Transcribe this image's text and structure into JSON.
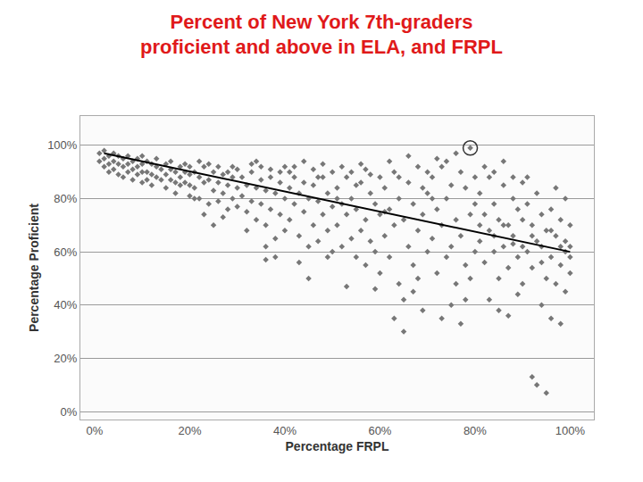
{
  "chart_data": {
    "type": "scatter",
    "title": [
      "Percent of New York 7th-graders",
      "proficient and above in ELA, and FRPL"
    ],
    "x_label": "Percentage FRPL",
    "y_label": "Percentage Proficient",
    "xlim": [
      -3,
      105
    ],
    "ylim": [
      -3,
      111
    ],
    "xticks": [
      {
        "value": 0,
        "label": "0%"
      },
      {
        "value": 20,
        "label": "20%"
      },
      {
        "value": 40,
        "label": "40%"
      },
      {
        "value": 60,
        "label": "60%"
      },
      {
        "value": 80,
        "label": "80%"
      },
      {
        "value": 100,
        "label": "100%"
      }
    ],
    "yticks": [
      {
        "value": 0,
        "label": "0%"
      },
      {
        "value": 20,
        "label": "20%"
      },
      {
        "value": 40,
        "label": "40%"
      },
      {
        "value": 60,
        "label": "60%"
      },
      {
        "value": 80,
        "label": "80%"
      },
      {
        "value": 100,
        "label": "100%"
      }
    ],
    "grid": "y",
    "series": [
      {
        "type": "scatter",
        "marker": "diamond",
        "color": "#777777",
        "x": [
          1,
          1,
          2,
          2,
          2,
          3,
          3,
          3,
          4,
          4,
          4,
          5,
          5,
          5,
          6,
          6,
          6,
          7,
          7,
          7,
          8,
          8,
          8,
          9,
          9,
          9,
          10,
          10,
          10,
          10,
          11,
          11,
          11,
          12,
          12,
          12,
          13,
          13,
          13,
          14,
          14,
          15,
          15,
          15,
          16,
          16,
          16,
          17,
          17,
          17,
          18,
          18,
          18,
          19,
          19,
          19,
          20,
          20,
          20,
          20,
          21,
          21,
          22,
          22,
          23,
          23,
          24,
          24,
          25,
          25,
          26,
          26,
          27,
          27,
          28,
          28,
          29,
          29,
          30,
          30,
          22,
          24,
          26,
          28,
          30,
          23,
          27,
          29,
          25,
          21,
          31,
          31,
          32,
          32,
          33,
          33,
          34,
          34,
          35,
          35,
          36,
          36,
          37,
          37,
          38,
          38,
          39,
          39,
          40,
          40,
          33,
          35,
          37,
          39,
          32,
          34,
          36,
          38,
          40,
          36,
          41,
          41,
          42,
          42,
          43,
          43,
          44,
          44,
          45,
          45,
          46,
          46,
          47,
          47,
          48,
          48,
          49,
          49,
          50,
          50,
          42,
          44,
          46,
          48,
          50,
          43,
          45,
          47,
          49,
          41,
          51,
          51,
          52,
          52,
          53,
          53,
          54,
          54,
          55,
          55,
          56,
          56,
          57,
          57,
          58,
          58,
          59,
          59,
          60,
          60,
          52,
          54,
          56,
          58,
          60,
          53,
          55,
          57,
          59,
          51,
          61,
          61,
          62,
          62,
          63,
          63,
          64,
          64,
          65,
          65,
          66,
          66,
          67,
          67,
          68,
          68,
          69,
          69,
          70,
          70,
          62,
          64,
          66,
          68,
          70,
          63,
          65,
          67,
          69,
          61,
          71,
          71,
          72,
          72,
          73,
          73,
          74,
          74,
          75,
          75,
          76,
          76,
          77,
          77,
          78,
          78,
          79,
          79,
          80,
          80,
          72,
          74,
          76,
          78,
          80,
          73,
          75,
          77,
          79,
          71,
          81,
          81,
          82,
          82,
          83,
          83,
          84,
          84,
          85,
          85,
          86,
          86,
          87,
          87,
          88,
          88,
          89,
          89,
          90,
          90,
          82,
          84,
          86,
          88,
          90,
          83,
          85,
          87,
          89,
          81,
          91,
          91,
          92,
          92,
          93,
          93,
          94,
          94,
          95,
          95,
          96,
          96,
          97,
          97,
          98,
          98,
          99,
          99,
          100,
          100,
          92,
          93,
          95,
          91,
          94,
          96,
          98,
          97,
          99,
          100,
          90,
          92,
          94,
          96,
          98,
          100,
          88,
          86,
          84,
          99
        ],
        "values": [
          97,
          94,
          98,
          95,
          92,
          96,
          93,
          90,
          97,
          94,
          91,
          96,
          93,
          89,
          95,
          92,
          88,
          96,
          93,
          90,
          94,
          91,
          87,
          95,
          92,
          89,
          93,
          90,
          86,
          96,
          94,
          90,
          87,
          93,
          89,
          85,
          92,
          88,
          95,
          91,
          87,
          93,
          89,
          84,
          91,
          87,
          94,
          90,
          86,
          82,
          92,
          88,
          85,
          90,
          86,
          93,
          89,
          85,
          81,
          92,
          90,
          84,
          88,
          80,
          92,
          86,
          87,
          78,
          90,
          83,
          86,
          79,
          89,
          82,
          85,
          76,
          88,
          80,
          84,
          77,
          94,
          93,
          92,
          90,
          91,
          74,
          73,
          92,
          70,
          80,
          88,
          81,
          85,
          75,
          90,
          79,
          84,
          72,
          87,
          78,
          83,
          70,
          88,
          76,
          82,
          65,
          86,
          74,
          80,
          68,
          93,
          92,
          91,
          90,
          68,
          94,
          62,
          58,
          92,
          57,
          84,
          72,
          88,
          78,
          82,
          66,
          86,
          75,
          80,
          62,
          85,
          70,
          79,
          64,
          88,
          74,
          82,
          68,
          77,
          60,
          92,
          94,
          91,
          93,
          90,
          56,
          50,
          88,
          58,
          90,
          84,
          70,
          78,
          62,
          88,
          74,
          80,
          65,
          76,
          58,
          86,
          68,
          72,
          55,
          82,
          64,
          78,
          60,
          74,
          52,
          92,
          90,
          93,
          89,
          88,
          47,
          85,
          91,
          46,
          80,
          84,
          66,
          76,
          58,
          90,
          70,
          80,
          48,
          72,
          42,
          86,
          62,
          78,
          55,
          92,
          68,
          74,
          38,
          82,
          60,
          94,
          88,
          96,
          50,
          90,
          35,
          30,
          45,
          84,
          75,
          88,
          65,
          76,
          52,
          92,
          70,
          80,
          58,
          85,
          62,
          72,
          48,
          90,
          66,
          84,
          55,
          99,
          74,
          78,
          60,
          95,
          94,
          97,
          42,
          88,
          35,
          40,
          33,
          50,
          80,
          82,
          64,
          74,
          56,
          88,
          68,
          78,
          60,
          72,
          50,
          85,
          62,
          70,
          54,
          80,
          66,
          76,
          58,
          72,
          48,
          92,
          90,
          94,
          88,
          86,
          42,
          38,
          36,
          44,
          70,
          78,
          60,
          70,
          54,
          82,
          64,
          74,
          56,
          68,
          50,
          76,
          58,
          66,
          48,
          72,
          55,
          64,
          45,
          70,
          52,
          13,
          10,
          7,
          88,
          40,
          35,
          33,
          84,
          80,
          62,
          62,
          66,
          62,
          68,
          62,
          58,
          63,
          70,
          66,
          60
        ]
      },
      {
        "type": "line",
        "line_style": "solid",
        "color": "#000000",
        "x": [
          2,
          100
        ],
        "values": [
          97,
          60
        ]
      },
      {
        "type": "scatter",
        "marker": "circle-open",
        "color": "#333333",
        "x": [
          79
        ],
        "values": [
          99
        ]
      }
    ]
  }
}
